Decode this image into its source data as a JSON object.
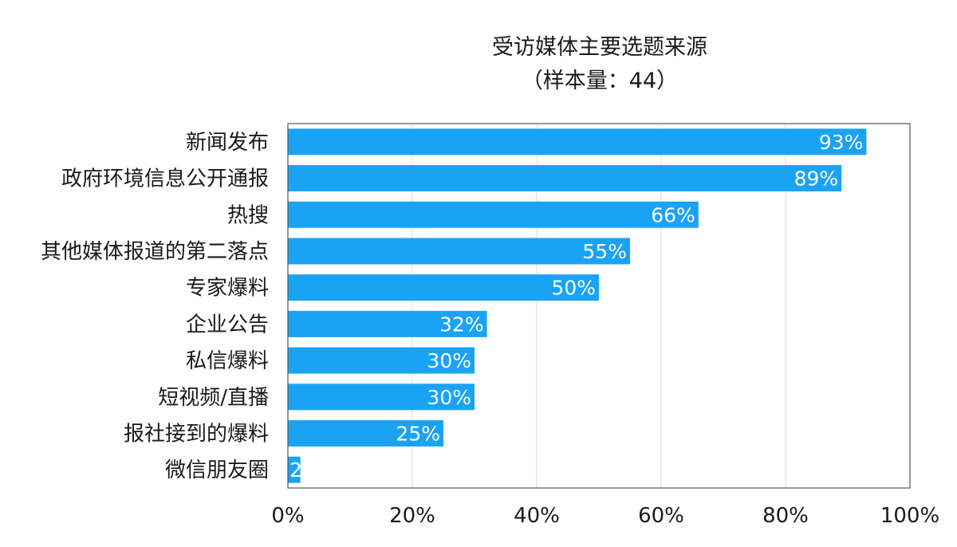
{
  "chart_data": {
    "type": "bar",
    "orientation": "horizontal",
    "title": "受访媒体主要选题来源",
    "subtitle": "（样本量：44）",
    "xlabel": "",
    "ylabel": "",
    "xlim": [
      0,
      100
    ],
    "x_ticks": [
      0,
      20,
      40,
      60,
      80,
      100
    ],
    "x_tick_labels": [
      "0%",
      "20%",
      "40%",
      "60%",
      "80%",
      "100%"
    ],
    "grid": true,
    "bar_color": "#1aa3f5",
    "categories": [
      "新闻发布",
      "政府环境信息公开通报",
      "热搜",
      "其他媒体报道的第二落点",
      "专家爆料",
      "企业公告",
      "私信爆料",
      "短视频/直播",
      "报社接到的爆料",
      "微信朋友圈"
    ],
    "values": [
      93,
      89,
      66,
      55,
      50,
      32,
      30,
      30,
      25,
      2
    ],
    "value_labels": [
      "93%",
      "89%",
      "66%",
      "55%",
      "50%",
      "32%",
      "30%",
      "30%",
      "25%",
      "2"
    ]
  }
}
